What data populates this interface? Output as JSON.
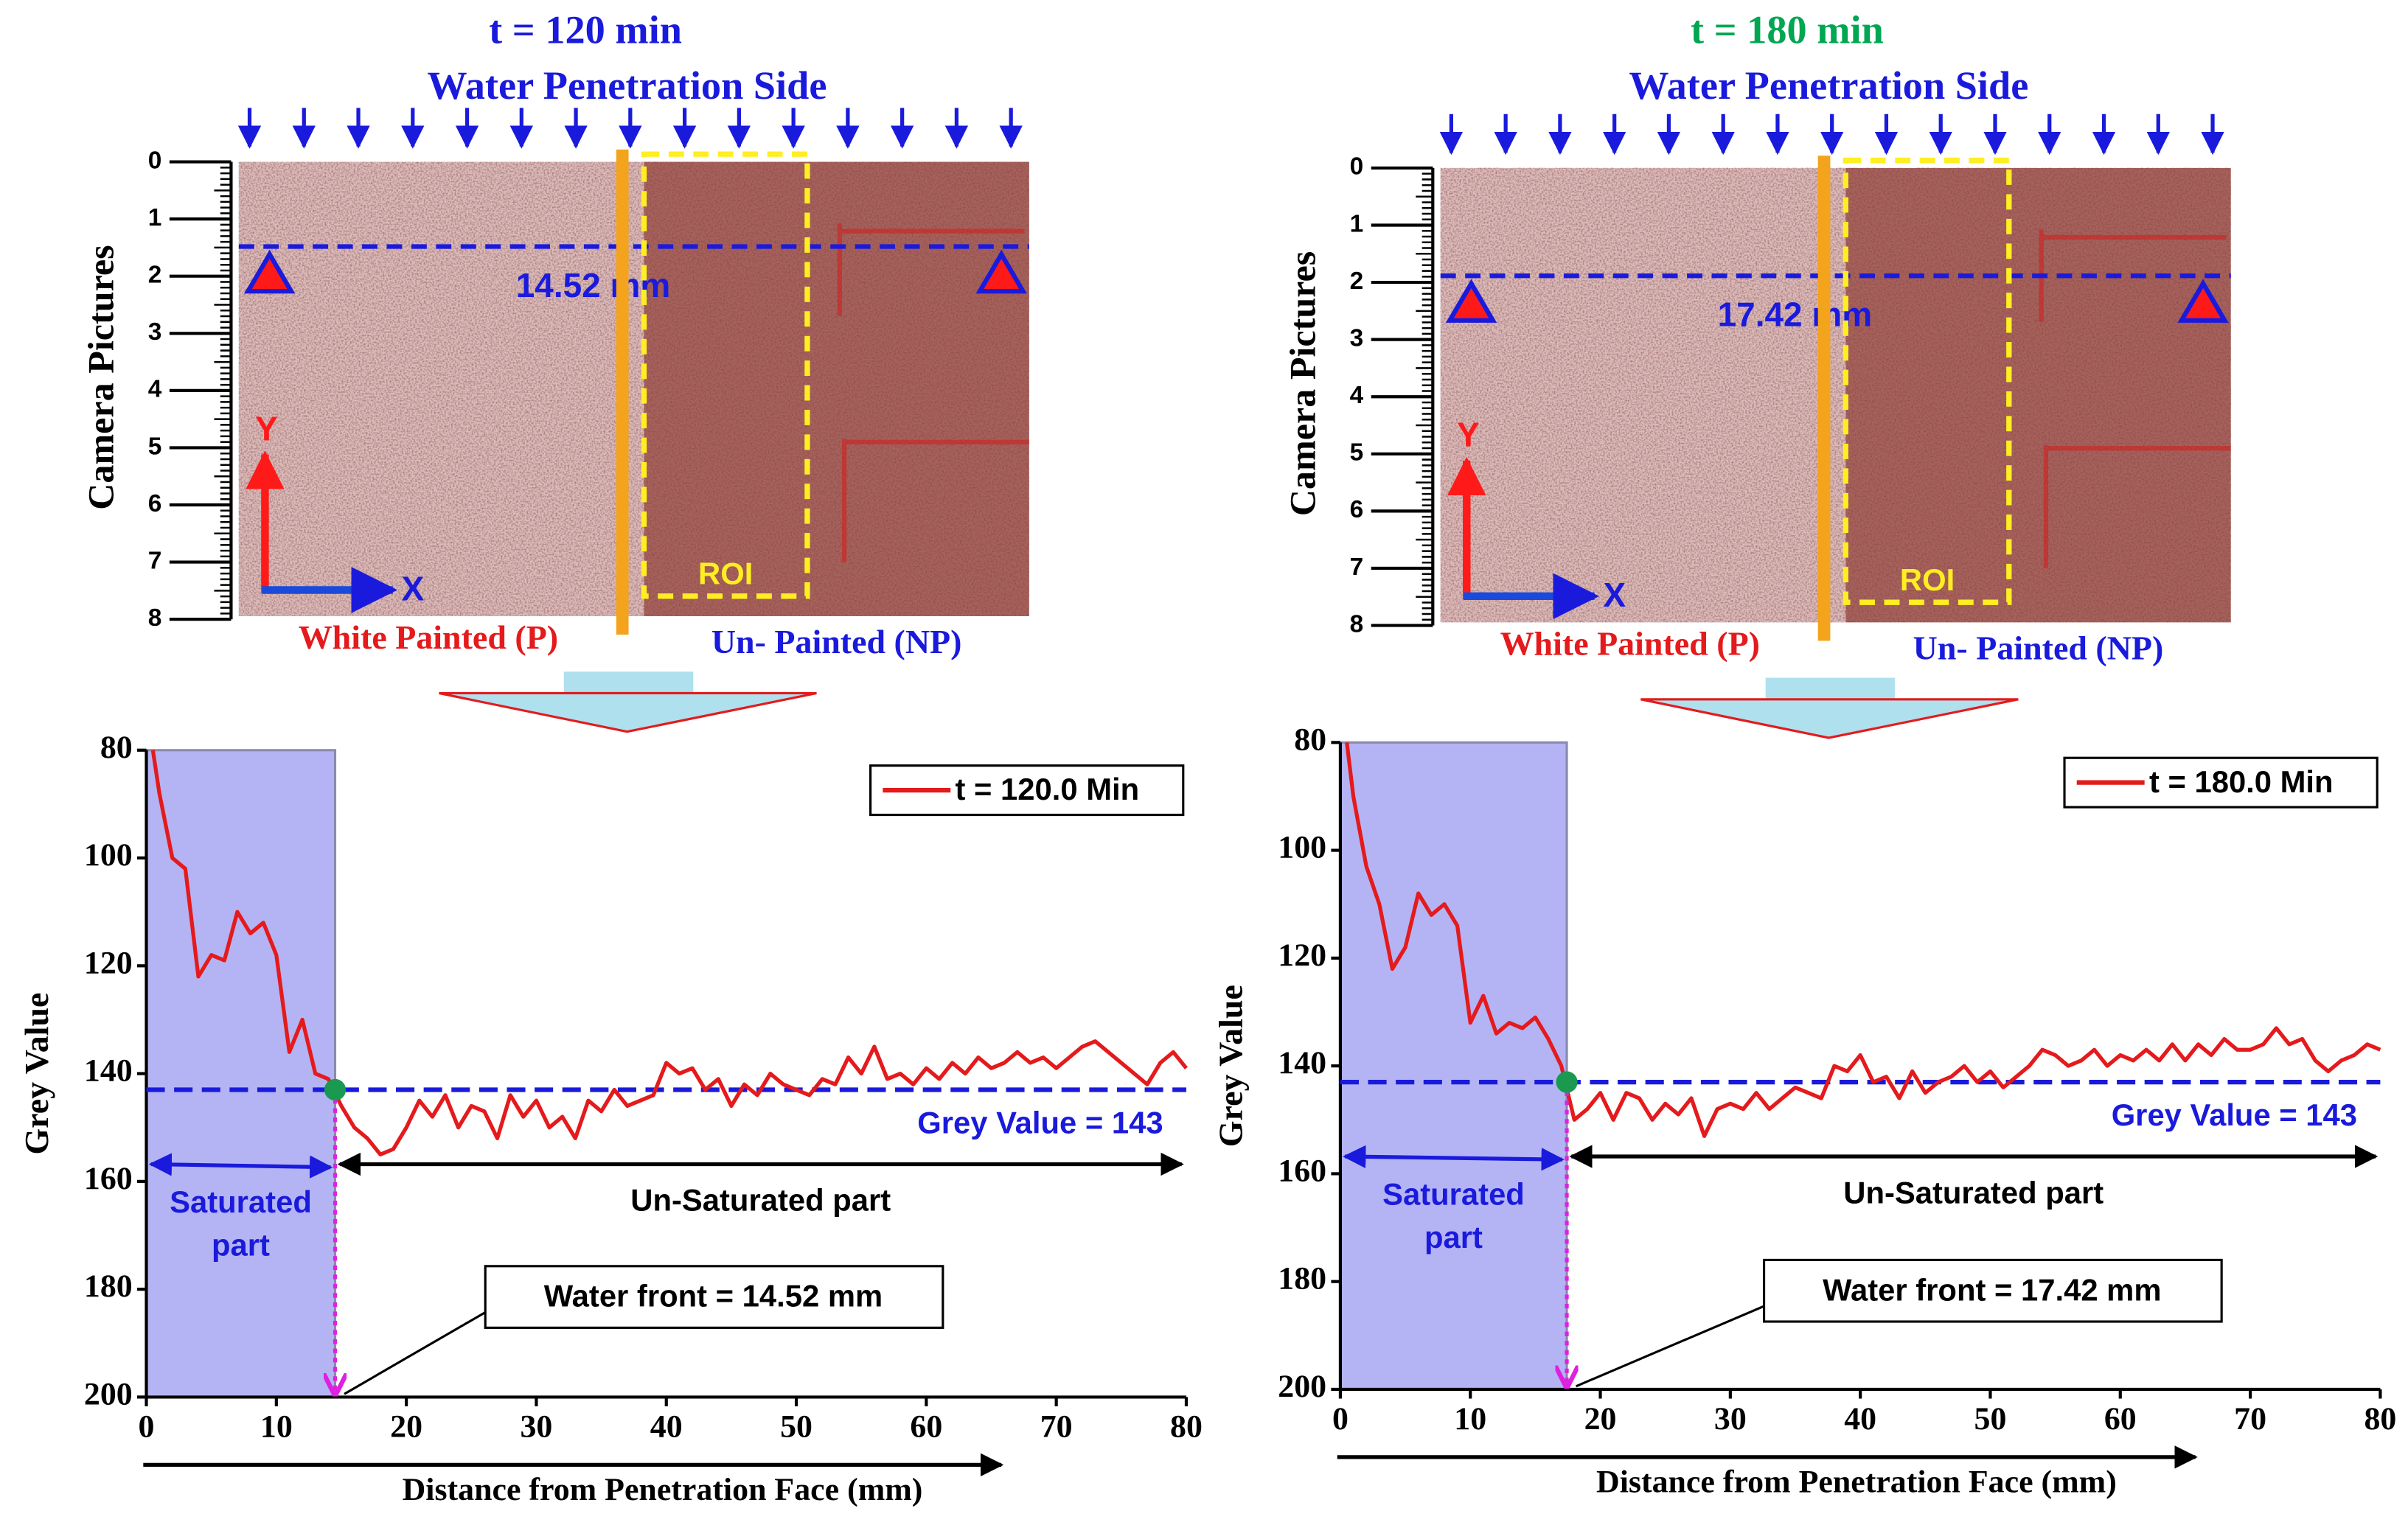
{
  "panels": [
    {
      "title": "t = 120 min",
      "title_color": "#1a1adc",
      "subtitle": "Water Penetration Side",
      "front_label": "14.52 mm",
      "painted": "White Painted (P)",
      "unpainted": "Un- Painted (NP)",
      "roi": "ROI",
      "y_axis_label": "Camera Pictures",
      "axis_y": "Y",
      "axis_x": "X",
      "ylim": [
        0,
        8
      ],
      "yticks": [
        0,
        1,
        2,
        3,
        4,
        5,
        6,
        7,
        8
      ]
    },
    {
      "title": "t = 180 min",
      "title_color": "#00a651",
      "subtitle": "Water Penetration Side",
      "front_label": "17.42 mm",
      "painted": "White Painted (P)",
      "unpainted": "Un- Painted (NP)",
      "roi": "ROI",
      "y_axis_label": "Camera Pictures",
      "axis_y": "Y",
      "axis_x": "X",
      "ylim": [
        0,
        8
      ],
      "yticks": [
        0,
        1,
        2,
        3,
        4,
        5,
        6,
        7,
        8
      ]
    }
  ],
  "chart_data": [
    {
      "type": "line",
      "xlabel": "Distance from Penetration Face (mm)",
      "ylabel": "Grey Value",
      "x": [
        0.5,
        1,
        2,
        3,
        4,
        5,
        6,
        7,
        8,
        9,
        10,
        11,
        12,
        13,
        14,
        15,
        16,
        17,
        18,
        19,
        20,
        21,
        22,
        23,
        24,
        25,
        26,
        27,
        28,
        29,
        30,
        31,
        32,
        33,
        34,
        35,
        36,
        37,
        38,
        39,
        40,
        41,
        42,
        43,
        44,
        45,
        46,
        47,
        48,
        49,
        50,
        51,
        52,
        53,
        54,
        55,
        56,
        57,
        58,
        59,
        60,
        61,
        62,
        63,
        64,
        65,
        66,
        67,
        68,
        69,
        70,
        71,
        72,
        73,
        74,
        75,
        76,
        77,
        78,
        79,
        80
      ],
      "series": [
        {
          "name": "t = 120.0 Min",
          "color": "#e41a1c",
          "values": [
            80,
            88,
            100,
            102,
            122,
            118,
            119,
            110,
            114,
            112,
            118,
            136,
            130,
            140,
            141,
            146,
            150,
            152,
            155,
            154,
            150,
            145,
            148,
            144,
            150,
            146,
            147,
            152,
            144,
            148,
            145,
            150,
            148,
            152,
            145,
            147,
            143,
            146,
            145,
            144,
            138,
            140,
            139,
            143,
            141,
            146,
            142,
            144,
            140,
            142,
            143,
            144,
            141,
            142,
            137,
            140,
            135,
            141,
            140,
            142,
            139,
            141,
            138,
            140,
            137,
            139,
            138,
            136,
            138,
            137,
            139,
            137,
            135,
            134,
            136,
            138,
            140,
            142,
            138,
            136,
            139
          ]
        }
      ],
      "xlim": [
        0,
        80
      ],
      "xticks": [
        0,
        10,
        20,
        30,
        40,
        50,
        60,
        70,
        80
      ],
      "ylim": [
        200,
        80
      ],
      "yticks": [
        80,
        100,
        120,
        140,
        160,
        180,
        200
      ],
      "threshold": 143,
      "threshold_label": "Grey Value = 143",
      "threshold_color": "#1a1adc",
      "water_front": 14.52,
      "water_front_label": "Water front = 14.52 mm",
      "saturated_label": [
        "Saturated",
        "part"
      ],
      "unsaturated_label": "Un-Saturated part",
      "legend": "upper right"
    },
    {
      "type": "line",
      "xlabel": "Distance from Penetration Face (mm)",
      "ylabel": "Grey Value",
      "x": [
        0.5,
        1,
        2,
        3,
        4,
        5,
        6,
        7,
        8,
        9,
        10,
        11,
        12,
        13,
        14,
        15,
        16,
        17,
        18,
        19,
        20,
        21,
        22,
        23,
        24,
        25,
        26,
        27,
        28,
        29,
        30,
        31,
        32,
        33,
        34,
        35,
        36,
        37,
        38,
        39,
        40,
        41,
        42,
        43,
        44,
        45,
        46,
        47,
        48,
        49,
        50,
        51,
        52,
        53,
        54,
        55,
        56,
        57,
        58,
        59,
        60,
        61,
        62,
        63,
        64,
        65,
        66,
        67,
        68,
        69,
        70,
        71,
        72,
        73,
        74,
        75,
        76,
        77,
        78,
        79,
        80
      ],
      "series": [
        {
          "name": "t = 180.0 Min",
          "color": "#e41a1c",
          "values": [
            80,
            90,
            103,
            110,
            122,
            118,
            108,
            112,
            110,
            114,
            132,
            127,
            134,
            132,
            133,
            131,
            135,
            140,
            150,
            148,
            145,
            150,
            145,
            146,
            150,
            147,
            149,
            146,
            153,
            148,
            147,
            148,
            145,
            148,
            146,
            144,
            145,
            146,
            140,
            141,
            138,
            143,
            142,
            146,
            141,
            145,
            143,
            142,
            140,
            143,
            141,
            144,
            142,
            140,
            137,
            138,
            140,
            139,
            137,
            140,
            138,
            139,
            137,
            139,
            136,
            139,
            136,
            138,
            135,
            137,
            137,
            136,
            133,
            136,
            135,
            139,
            141,
            139,
            138,
            136,
            137
          ]
        }
      ],
      "xlim": [
        0,
        80
      ],
      "xticks": [
        0,
        10,
        20,
        30,
        40,
        50,
        60,
        70,
        80
      ],
      "ylim": [
        200,
        80
      ],
      "yticks": [
        80,
        100,
        120,
        140,
        160,
        180,
        200
      ],
      "threshold": 143,
      "threshold_label": "Grey Value = 143",
      "threshold_color": "#1a1adc",
      "water_front": 17.42,
      "water_front_label": "Water front = 17.42 mm",
      "saturated_label": [
        "Saturated",
        "part"
      ],
      "unsaturated_label": "Un-Saturated part",
      "legend": "upper right"
    }
  ]
}
